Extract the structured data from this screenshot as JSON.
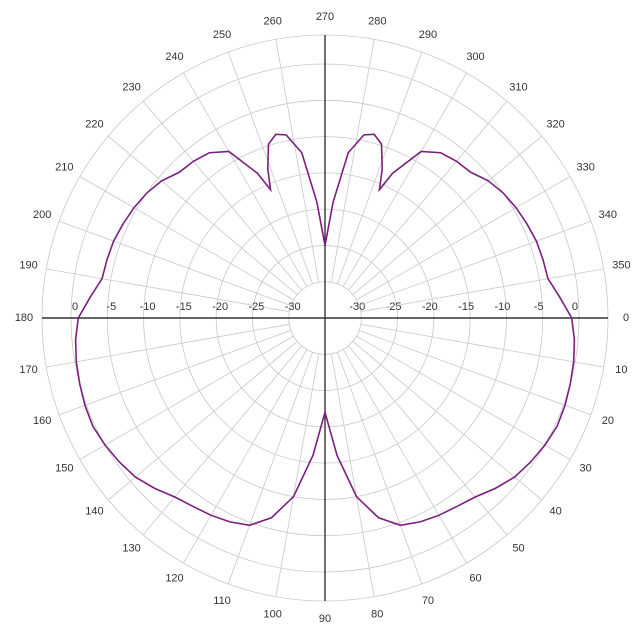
{
  "chart_data": {
    "type": "polar",
    "color": "#7b1f7f",
    "direction": "clockwise",
    "zero": "right",
    "rlim": [
      -35,
      4
    ],
    "rticks": [
      -30,
      -25,
      -20,
      -15,
      -10,
      -5,
      0
    ],
    "thetaticks": [
      0,
      10,
      20,
      30,
      40,
      50,
      60,
      70,
      80,
      90,
      100,
      110,
      120,
      130,
      140,
      150,
      160,
      170,
      180,
      190,
      200,
      210,
      220,
      230,
      240,
      250,
      260,
      270,
      280,
      290,
      300,
      310,
      320,
      330,
      340,
      350
    ],
    "grid": true,
    "angles": [
      0,
      5,
      10,
      15,
      20,
      25,
      30,
      35,
      40,
      45,
      50,
      55,
      60,
      65,
      70,
      75,
      80,
      85,
      90,
      95,
      100,
      105,
      110,
      115,
      120,
      125,
      130,
      135,
      140,
      145,
      150,
      155,
      160,
      165,
      170,
      175,
      180,
      185,
      190,
      195,
      200,
      205,
      210,
      215,
      220,
      225,
      230,
      235,
      240,
      245,
      247,
      249,
      252,
      255,
      258,
      262,
      266,
      270,
      274,
      278,
      282,
      285,
      288,
      291,
      293,
      295,
      300,
      305,
      310,
      315,
      320,
      325,
      330,
      335,
      340,
      345,
      350,
      355
    ],
    "values": [
      -1,
      -0.5,
      -0.2,
      0,
      0.2,
      0.3,
      0,
      -0.4,
      -0.9,
      -1.8,
      -2.8,
      -3.3,
      -3.6,
      -4,
      -4.6,
      -6.5,
      -10,
      -16,
      -22,
      -16,
      -10,
      -6.5,
      -4.6,
      -4,
      -3.6,
      -3.3,
      -2.8,
      -1.8,
      -0.9,
      -0.4,
      0,
      0.3,
      0.2,
      0,
      -0.2,
      -0.5,
      -1,
      -2.5,
      -3.8,
      -3.9,
      -4,
      -4.3,
      -4.6,
      -5,
      -5.6,
      -6.6,
      -6.8,
      -7.2,
      -8.5,
      -13,
      -15.8,
      -13,
      -9.8,
      -8.8,
      -9.2,
      -12,
      -19,
      -25,
      -19,
      -12,
      -9.2,
      -8.8,
      -9.8,
      -13,
      -15.8,
      -13,
      -8.5,
      -7.2,
      -6.8,
      -6.6,
      -5.6,
      -5,
      -4.6,
      -4.3,
      -4,
      -3.9,
      -3.8,
      -2.5
    ]
  }
}
